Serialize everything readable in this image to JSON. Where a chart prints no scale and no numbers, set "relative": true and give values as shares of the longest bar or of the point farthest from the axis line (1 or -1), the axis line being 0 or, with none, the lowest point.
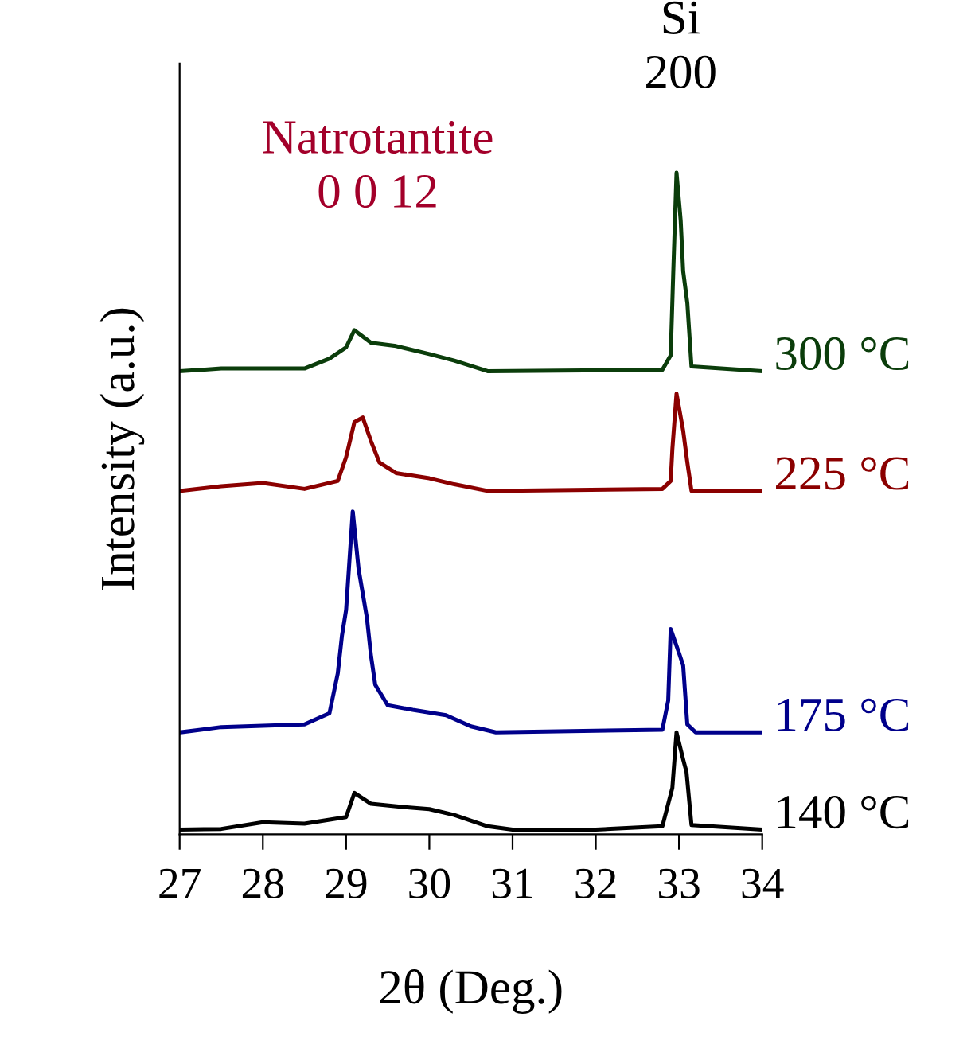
{
  "chart_data": {
    "type": "line",
    "relative": true,
    "xlabel": "2θ (Deg.)",
    "ylabel": "Intensity (a.u.)",
    "xlim": [
      27,
      34
    ],
    "xticks": [
      27,
      28,
      29,
      30,
      31,
      32,
      33,
      34
    ],
    "legend": false,
    "grid": false,
    "marker": "none",
    "line_style": "solid",
    "annotations": [
      "Natrotantite\n0 0 12",
      "Si\n200"
    ],
    "series": [
      {
        "name": "140 °C",
        "color": "#000000",
        "x": [
          27.0,
          27.5,
          28.0,
          28.5,
          29.0,
          29.1,
          29.3,
          29.7,
          30.0,
          30.3,
          30.7,
          31.0,
          32.0,
          32.8,
          32.92,
          32.97,
          33.05,
          33.09,
          33.15,
          34.0
        ],
        "values": [
          0.007,
          0.008,
          0.018,
          0.016,
          0.026,
          0.0625,
          0.046,
          0.041,
          0.038,
          0.029,
          0.012,
          0.007,
          0.007,
          0.012,
          0.07,
          0.154,
          0.113,
          0.094,
          0.014,
          0.007
        ]
      },
      {
        "name": "175 °C",
        "color": "#00008b",
        "x": [
          27.0,
          27.5,
          28.5,
          28.8,
          28.9,
          28.95,
          29.0,
          29.08,
          29.15,
          29.25,
          29.3,
          29.35,
          29.5,
          29.8,
          30.2,
          30.5,
          30.8,
          32.8,
          32.87,
          32.9,
          33.0,
          33.05,
          33.1,
          33.2,
          34.0
        ],
        "values": [
          0.154,
          0.162,
          0.166,
          0.183,
          0.243,
          0.3,
          0.339,
          0.488,
          0.401,
          0.327,
          0.269,
          0.226,
          0.195,
          0.188,
          0.18,
          0.163,
          0.154,
          0.158,
          0.202,
          0.31,
          0.274,
          0.255,
          0.166,
          0.154,
          0.154
        ]
      },
      {
        "name": "225 °C",
        "color": "#8b0000",
        "x": [
          27.0,
          27.5,
          28.0,
          28.5,
          28.9,
          29.0,
          29.1,
          29.2,
          29.3,
          29.4,
          29.6,
          30.0,
          30.3,
          30.7,
          32.8,
          32.9,
          32.92,
          32.97,
          33.05,
          33.1,
          33.15,
          34.0
        ],
        "values": [
          0.519,
          0.526,
          0.531,
          0.522,
          0.534,
          0.57,
          0.623,
          0.63,
          0.594,
          0.562,
          0.546,
          0.538,
          0.529,
          0.519,
          0.522,
          0.534,
          0.582,
          0.666,
          0.61,
          0.562,
          0.519,
          0.519
        ]
      },
      {
        "name": "300 °C",
        "color": "#0b3d0b",
        "x": [
          27.0,
          27.5,
          28.5,
          28.8,
          29.0,
          29.1,
          29.3,
          29.6,
          30.0,
          30.3,
          30.7,
          32.8,
          32.9,
          32.93,
          32.97,
          33.02,
          33.05,
          33.1,
          33.15,
          34.0
        ],
        "values": [
          0.7,
          0.704,
          0.704,
          0.719,
          0.736,
          0.762,
          0.743,
          0.738,
          0.726,
          0.716,
          0.7,
          0.702,
          0.724,
          0.846,
          1.0,
          0.928,
          0.851,
          0.803,
          0.707,
          0.7
        ]
      }
    ]
  }
}
